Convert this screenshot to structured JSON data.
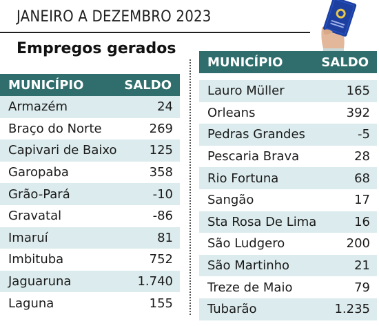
{
  "header": {
    "period": "JANEIRO A DEZEMBRO 2023",
    "title": "Empregos gerados"
  },
  "icon": "work-card-hand-icon",
  "left_table": {
    "col_municipio": "MUNICÍPIO",
    "col_saldo": "SALDO",
    "rows": [
      {
        "municipio": "Armazém",
        "saldo": "24"
      },
      {
        "municipio": "Braço do Norte",
        "saldo": "269"
      },
      {
        "municipio": "Capivari de Baixo",
        "saldo": "125"
      },
      {
        "municipio": "Garopaba",
        "saldo": "358"
      },
      {
        "municipio": "Grão-Pará",
        "saldo": "-10"
      },
      {
        "municipio": "Gravatal",
        "saldo": "-86"
      },
      {
        "municipio": "Imaruí",
        "saldo": "81"
      },
      {
        "municipio": "Imbituba",
        "saldo": "752"
      },
      {
        "municipio": "Jaguaruna",
        "saldo": "1.740"
      },
      {
        "municipio": "Laguna",
        "saldo": "155"
      }
    ]
  },
  "right_table": {
    "col_municipio": "MUNICÍPIO",
    "col_saldo": "SALDO",
    "rows": [
      {
        "municipio": "Lauro Müller",
        "saldo": "165"
      },
      {
        "municipio": "Orleans",
        "saldo": "392"
      },
      {
        "municipio": "Pedras Grandes",
        "saldo": "-5"
      },
      {
        "municipio": "Pescaria Brava",
        "saldo": "28"
      },
      {
        "municipio": "Rio Fortuna",
        "saldo": "68"
      },
      {
        "municipio": "Sangão",
        "saldo": "17"
      },
      {
        "municipio": "Sta Rosa De Lima",
        "saldo": "16"
      },
      {
        "municipio": "São Ludgero",
        "saldo": "200"
      },
      {
        "municipio": "São Martinho",
        "saldo": "21"
      },
      {
        "municipio": "Treze de Maio",
        "saldo": "79"
      },
      {
        "municipio": "Tubarão",
        "saldo": "1.235"
      }
    ]
  },
  "colors": {
    "header_bg": "#2f6e6c",
    "row_alt_bg": "#dcebed"
  }
}
